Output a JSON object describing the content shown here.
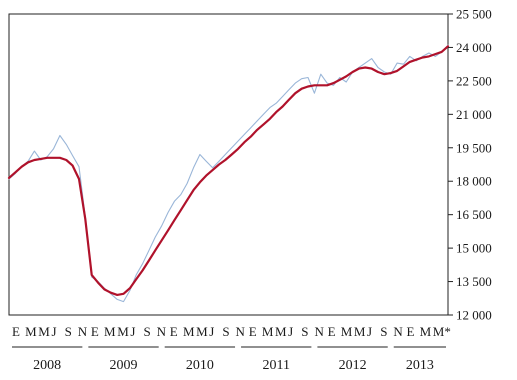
{
  "chart_data": {
    "type": "line",
    "title": "",
    "xlabel": "",
    "ylabel": "",
    "ylim": [
      12000,
      25500
    ],
    "yticks": [
      12000,
      13500,
      15000,
      16500,
      18000,
      19500,
      21000,
      22500,
      24000,
      25500
    ],
    "ytick_labels": [
      "12 000",
      "13 500",
      "15 000",
      "16 500",
      "18 000",
      "19 500",
      "21 000",
      "22 500",
      "24 000",
      "25 500"
    ],
    "y_axis_side": "right",
    "grid": false,
    "months_per_year": 12,
    "year_labels": [
      "2008",
      "2009",
      "2010",
      "2011",
      "2012",
      "2013"
    ],
    "month_labels": [
      "E",
      "M",
      "M",
      "J",
      "S",
      "N",
      "E",
      "M",
      "M",
      "J",
      "S",
      "N",
      "E",
      "M",
      "M",
      "J",
      "S",
      "N",
      "E",
      "M",
      "M",
      "J",
      "S",
      "N",
      "E",
      "M",
      "M",
      "J",
      "S",
      "N",
      "E",
      "M",
      "M*"
    ],
    "series": [
      {
        "style": "thin light blue",
        "color": "#9ab6d8",
        "values": [
          18100,
          18350,
          18650,
          18900,
          19350,
          18950,
          19100,
          19450,
          20050,
          19650,
          19150,
          18650,
          16400,
          13700,
          13500,
          13200,
          12950,
          12700,
          12600,
          13100,
          13800,
          14300,
          14900,
          15500,
          16000,
          16600,
          17100,
          17400,
          17900,
          18600,
          19200,
          18900,
          18600,
          18900,
          19200,
          19500,
          19800,
          20100,
          20400,
          20700,
          21000,
          21300,
          21500,
          21800,
          22100,
          22400,
          22600,
          22650,
          21950,
          22800,
          22400,
          22300,
          22650,
          22450,
          22900,
          23100,
          23300,
          23500,
          23100,
          22900,
          22800,
          23300,
          23250,
          23600,
          23400,
          23600,
          23750,
          23600,
          23800,
          24100
        ]
      },
      {
        "style": "thick dark red",
        "color": "#b0122b",
        "values": [
          18150,
          18400,
          18650,
          18850,
          18950,
          19000,
          19050,
          19050,
          19050,
          18950,
          18700,
          18100,
          16300,
          13800,
          13450,
          13150,
          13000,
          12900,
          12950,
          13200,
          13600,
          14000,
          14450,
          14900,
          15350,
          15800,
          16250,
          16700,
          17150,
          17600,
          17950,
          18250,
          18500,
          18750,
          18950,
          19200,
          19450,
          19750,
          20000,
          20300,
          20550,
          20800,
          21100,
          21350,
          21650,
          21950,
          22150,
          22250,
          22300,
          22300,
          22300,
          22400,
          22550,
          22700,
          22900,
          23050,
          23100,
          23050,
          22900,
          22800,
          22850,
          22950,
          23150,
          23350,
          23450,
          23550,
          23600,
          23700,
          23800,
          24050
        ]
      }
    ]
  }
}
